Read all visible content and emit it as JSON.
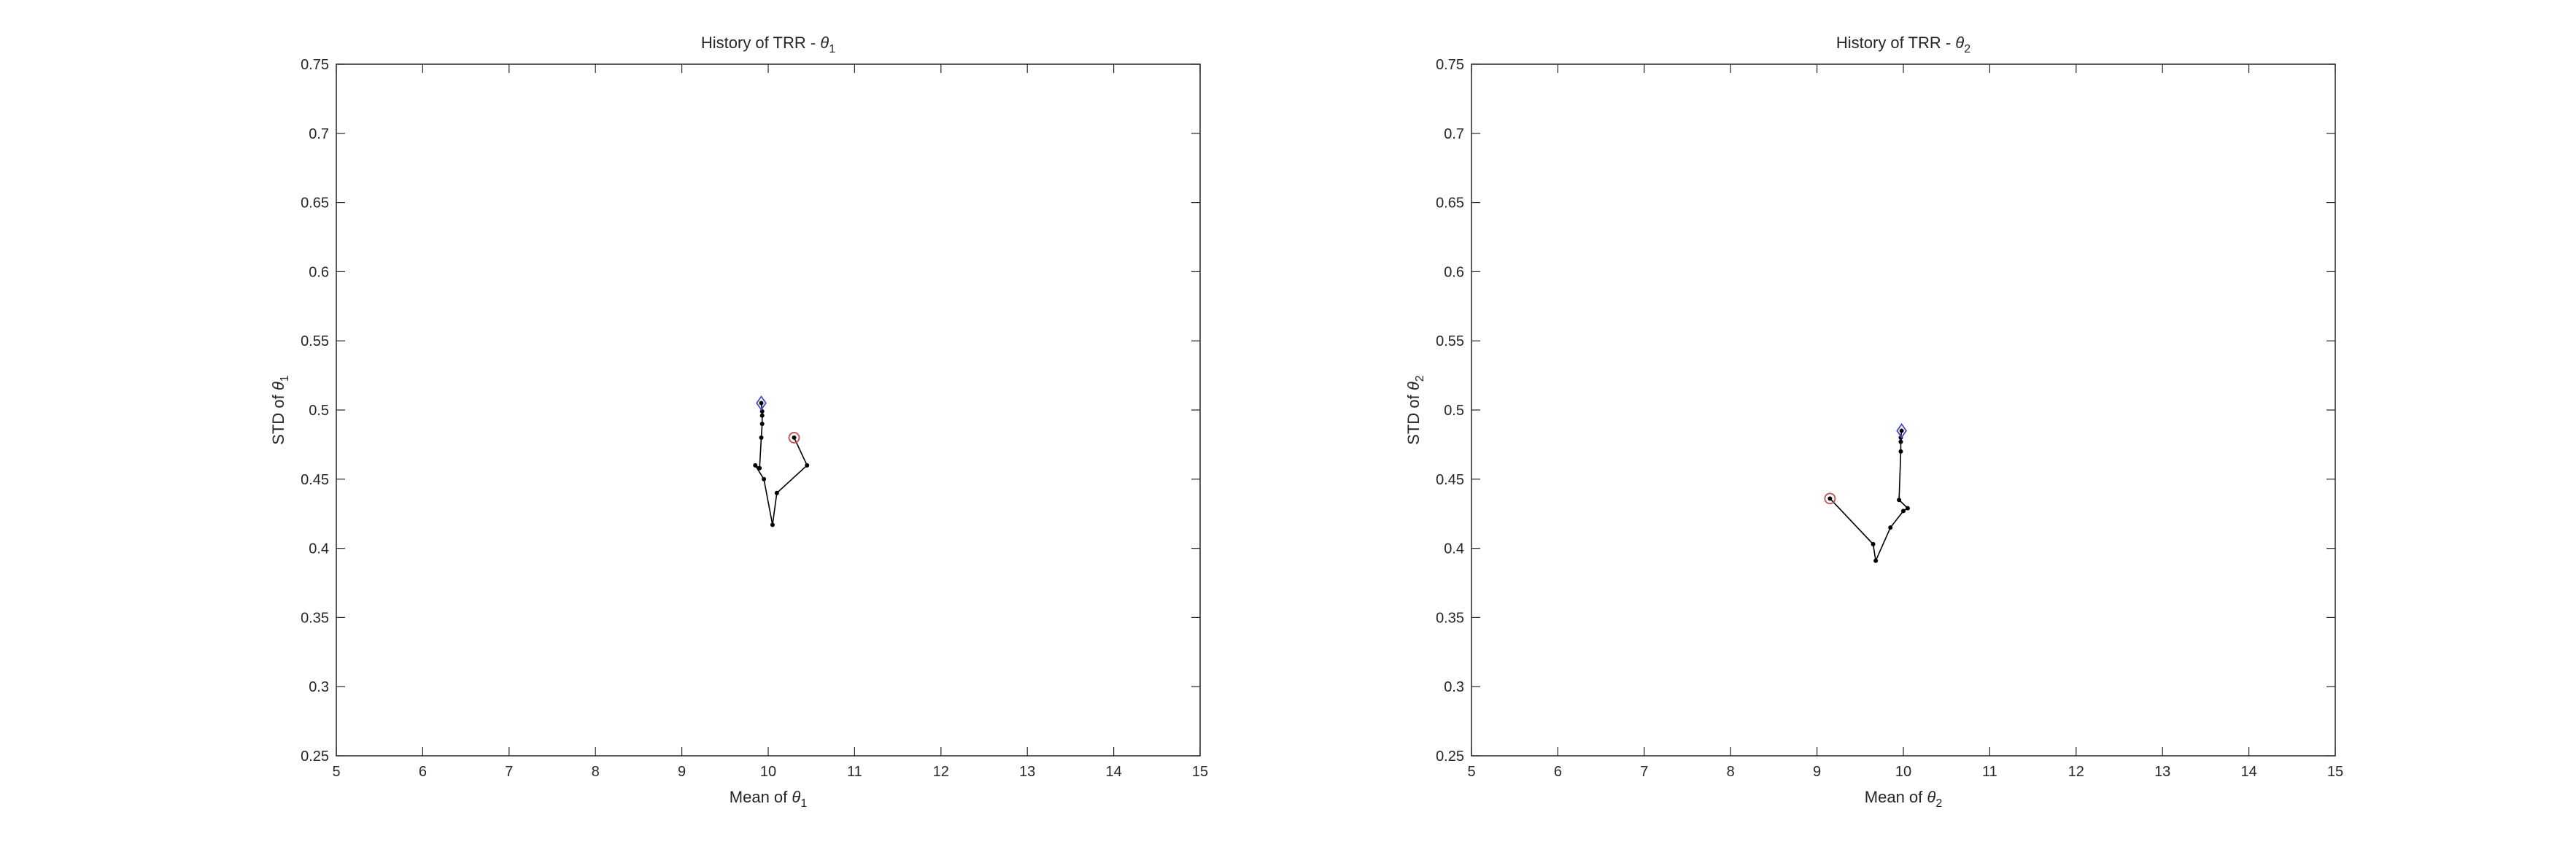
{
  "chart_data": [
    {
      "type": "line",
      "title": "History of TRR - ",
      "title_symbol": "θ",
      "title_subscript": "1",
      "xlabel": "Mean of ",
      "xlabel_symbol": "θ",
      "xlabel_subscript": "1",
      "ylabel": "STD of ",
      "ylabel_symbol": "θ",
      "ylabel_subscript": "1",
      "xlim": [
        5,
        15
      ],
      "ylim": [
        0.25,
        0.75
      ],
      "xticks": [
        "5",
        "6",
        "7",
        "8",
        "9",
        "10",
        "11",
        "12",
        "13",
        "14",
        "15"
      ],
      "yticks": [
        "0.25",
        "0.3",
        "0.35",
        "0.4",
        "0.45",
        "0.5",
        "0.55",
        "0.6",
        "0.65",
        "0.7",
        "0.75"
      ],
      "grid": false,
      "series": [
        {
          "x": [
            10.3,
            10.45,
            10.1,
            10.05,
            9.95,
            9.85,
            9.9,
            9.92,
            9.93,
            9.93,
            9.93,
            9.92
          ],
          "y": [
            0.48,
            0.46,
            0.44,
            0.417,
            0.45,
            0.46,
            0.458,
            0.48,
            0.49,
            0.496,
            0.499,
            0.505
          ],
          "color": "#000000"
        }
      ],
      "start_marker": {
        "x": 10.3,
        "y": 0.48,
        "shape": "circle",
        "color": "#c0504d"
      },
      "end_marker": {
        "x": 9.92,
        "y": 0.505,
        "shape": "diamond",
        "color": "#4a4ad0"
      }
    },
    {
      "type": "line",
      "title": "History of TRR - ",
      "title_symbol": "θ",
      "title_subscript": "2",
      "xlabel": "Mean of ",
      "xlabel_symbol": "θ",
      "xlabel_subscript": "2",
      "ylabel": "STD of ",
      "ylabel_symbol": "θ",
      "ylabel_subscript": "2",
      "xlim": [
        5,
        15
      ],
      "ylim": [
        0.25,
        0.75
      ],
      "xticks": [
        "5",
        "6",
        "7",
        "8",
        "9",
        "10",
        "11",
        "12",
        "13",
        "14",
        "15"
      ],
      "yticks": [
        "0.25",
        "0.3",
        "0.35",
        "0.4",
        "0.45",
        "0.5",
        "0.55",
        "0.6",
        "0.65",
        "0.7",
        "0.75"
      ],
      "grid": false,
      "series": [
        {
          "x": [
            9.15,
            9.65,
            9.68,
            9.85,
            10.0,
            10.05,
            9.95,
            9.97,
            9.97,
            9.97,
            9.98
          ],
          "y": [
            0.436,
            0.403,
            0.391,
            0.415,
            0.427,
            0.429,
            0.435,
            0.47,
            0.477,
            0.48,
            0.485
          ],
          "color": "#000000"
        }
      ],
      "start_marker": {
        "x": 9.15,
        "y": 0.436,
        "shape": "circle",
        "color": "#c0504d"
      },
      "end_marker": {
        "x": 9.98,
        "y": 0.485,
        "shape": "diamond",
        "color": "#4a4ad0"
      }
    }
  ]
}
